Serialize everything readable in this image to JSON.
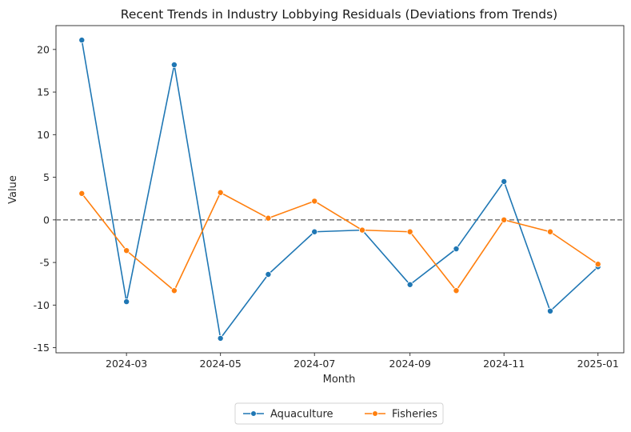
{
  "chart_data": {
    "type": "line",
    "title": "Recent Trends in Industry Lobbying Residuals (Deviations from Trends)",
    "xlabel": "Month",
    "ylabel": "Value",
    "x": [
      "2024-02-01",
      "2024-03-01",
      "2024-04-01",
      "2024-05-01",
      "2024-06-01",
      "2024-07-01",
      "2024-08-01",
      "2024-09-01",
      "2024-10-01",
      "2024-11-01",
      "2024-12-01",
      "2025-01-01"
    ],
    "x_ticks": [
      "2024-03",
      "2024-05",
      "2024-07",
      "2024-09",
      "2024-11",
      "2025-01"
    ],
    "y_ticks": [
      -15,
      -10,
      -5,
      0,
      5,
      10,
      15,
      20
    ],
    "ylim": [
      -15.6,
      22.8
    ],
    "series": [
      {
        "name": "Aquaculture",
        "color": "#1f77b4",
        "values": [
          21.1,
          -9.6,
          18.2,
          -13.9,
          -6.4,
          -1.4,
          -1.2,
          -7.6,
          -3.4,
          4.5,
          -10.7,
          -5.5
        ]
      },
      {
        "name": "Fisheries",
        "color": "#ff7f0e",
        "values": [
          3.1,
          -3.6,
          -8.3,
          3.2,
          0.2,
          2.2,
          -1.2,
          -1.4,
          -8.3,
          0.0,
          -1.4,
          -5.2
        ]
      }
    ],
    "reference_line": {
      "y": 0,
      "style": "dashed",
      "color": "#808080"
    },
    "grid": false,
    "legend_position": "bottom-center"
  }
}
